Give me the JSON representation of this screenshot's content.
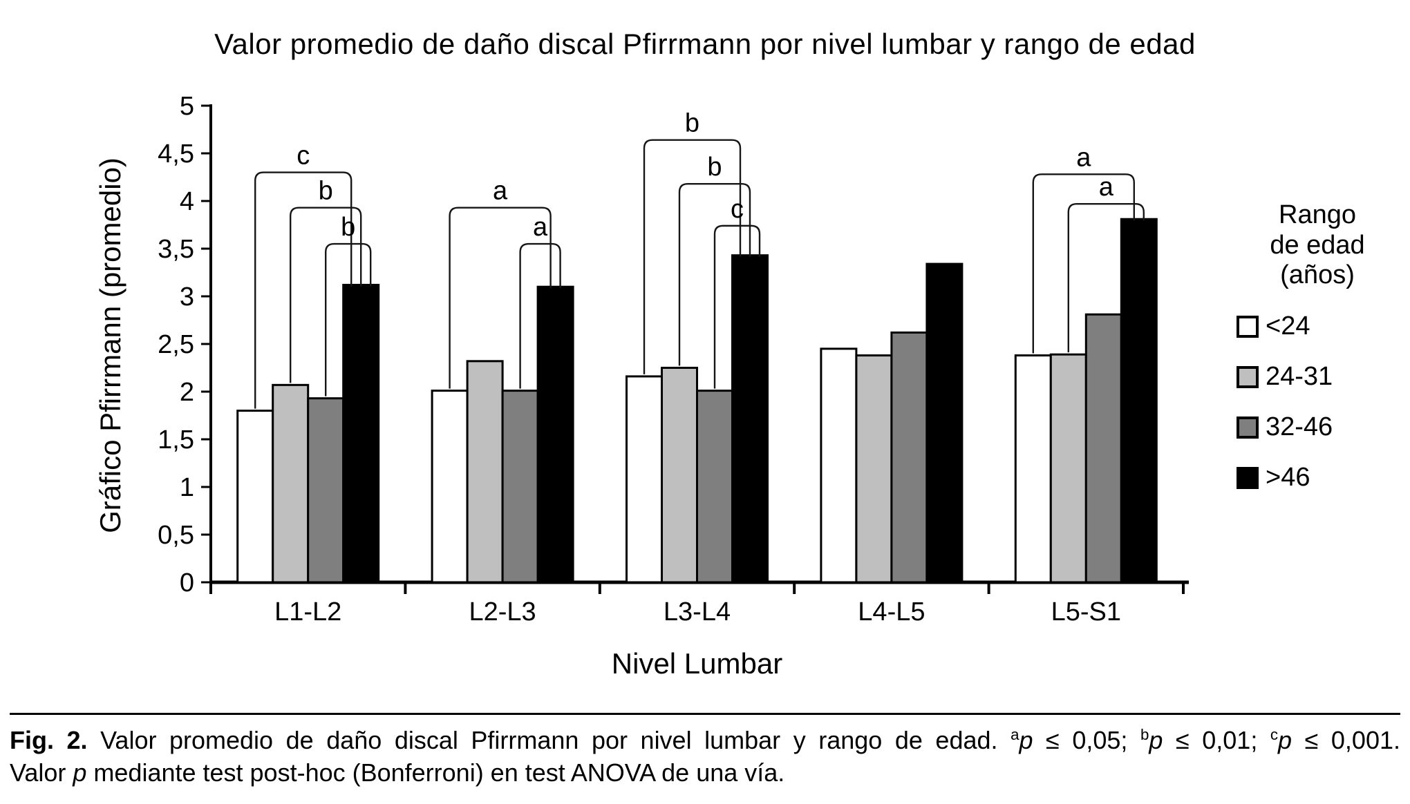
{
  "chart_data": {
    "type": "bar",
    "title": "Valor promedio de daño discal Pfirrmann por nivel lumbar y rango de edad",
    "xlabel": "Nivel Lumbar",
    "ylabel": "Gráfico Pfirrmann (promedio)",
    "categories": [
      "L1-L2",
      "L2-L3",
      "L3-L4",
      "L4-L5",
      "L5-S1"
    ],
    "series": [
      {
        "name": "<24",
        "color": "#ffffff",
        "values": [
          1.8,
          2.01,
          2.16,
          2.45,
          2.38
        ]
      },
      {
        "name": "24-31",
        "color": "#bfbfbf",
        "values": [
          2.07,
          2.32,
          2.25,
          2.38,
          2.39
        ]
      },
      {
        "name": "32-46",
        "color": "#7f7f7f",
        "values": [
          1.93,
          2.01,
          2.01,
          2.62,
          2.81
        ]
      },
      {
        "name": ">46",
        "color": "#000000",
        "values": [
          3.12,
          3.1,
          3.43,
          3.34,
          3.81
        ]
      }
    ],
    "ylim": [
      0,
      5
    ],
    "ytick_step": 0.5,
    "ytick_labels": [
      "0",
      "0,5",
      "1",
      "1,5",
      "2",
      "2,5",
      "3",
      "3,5",
      "4",
      "4,5",
      "5"
    ],
    "grid": false,
    "legend_position": "right",
    "brackets": [
      {
        "group": 0,
        "from": 0,
        "to": 3,
        "label": "c",
        "height": 4.3
      },
      {
        "group": 0,
        "from": 1,
        "to": 3,
        "label": "b",
        "height": 3.93
      },
      {
        "group": 0,
        "from": 2,
        "to": 3,
        "label": "b",
        "height": 3.55
      },
      {
        "group": 1,
        "from": 0,
        "to": 3,
        "label": "a",
        "height": 3.93
      },
      {
        "group": 1,
        "from": 2,
        "to": 3,
        "label": "a",
        "height": 3.55
      },
      {
        "group": 2,
        "from": 0,
        "to": 3,
        "label": "b",
        "height": 4.64
      },
      {
        "group": 2,
        "from": 1,
        "to": 3,
        "label": "b",
        "height": 4.18
      },
      {
        "group": 2,
        "from": 2,
        "to": 3,
        "label": "c",
        "height": 3.74
      },
      {
        "group": 4,
        "from": 0,
        "to": 3,
        "label": "a",
        "height": 4.28
      },
      {
        "group": 4,
        "from": 1,
        "to": 3,
        "label": "a",
        "height": 3.97
      }
    ]
  },
  "legend": {
    "title_lines": [
      "Rango",
      "de edad",
      "(años)"
    ]
  },
  "caption": {
    "lines": [
      {
        "segments": [
          {
            "text": "Fig. 2.",
            "style": "bold"
          },
          {
            "text": " Valor promedio de daño discal Pfirrmann por nivel lumbar y rango de edad. ",
            "style": ""
          },
          {
            "text": "a",
            "style": "sup"
          },
          {
            "text": "p",
            "style": "italic"
          },
          {
            "text": " ≤ 0,05; ",
            "style": ""
          },
          {
            "text": "b",
            "style": "sup"
          },
          {
            "text": "p",
            "style": "italic"
          },
          {
            "text": " ≤ 0,01; ",
            "style": ""
          },
          {
            "text": "c",
            "style": "sup"
          },
          {
            "text": "p",
            "style": "italic"
          },
          {
            "text": " ≤ 0,001.",
            "style": ""
          }
        ]
      },
      {
        "segments": [
          {
            "text": "Valor ",
            "style": ""
          },
          {
            "text": "p",
            "style": "italic"
          },
          {
            "text": " mediante test post-hoc (Bonferroni) en test ANOVA de una vía.",
            "style": ""
          }
        ]
      }
    ]
  }
}
